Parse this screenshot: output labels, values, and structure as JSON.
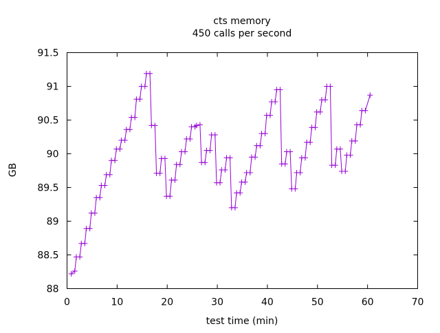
{
  "chart_data": {
    "type": "line",
    "title": "cts memory",
    "subtitle": "450 calls per second",
    "xlabel": "test time (min)",
    "ylabel": "GB",
    "xlim": [
      0,
      70
    ],
    "ylim": [
      88,
      91.5
    ],
    "xticks": [
      0,
      10,
      20,
      30,
      40,
      50,
      60,
      70
    ],
    "yticks": [
      88,
      88.5,
      89,
      89.5,
      90,
      90.5,
      91,
      91.5
    ],
    "ytick_labels": [
      "88",
      "88.5",
      "89",
      "89.5",
      "90",
      "90.5",
      "91",
      "91.5"
    ],
    "grid": false,
    "legend": "none",
    "series": [
      {
        "name": "cts memory",
        "color": "#9400d3",
        "marker": "plus",
        "points": [
          [
            0.85,
            88.22
          ],
          [
            1.55,
            88.26
          ],
          [
            1.85,
            88.47
          ],
          [
            2.55,
            88.47
          ],
          [
            2.85,
            88.67
          ],
          [
            3.55,
            88.67
          ],
          [
            3.85,
            88.89
          ],
          [
            4.55,
            88.89
          ],
          [
            4.85,
            89.12
          ],
          [
            5.55,
            89.12
          ],
          [
            5.85,
            89.35
          ],
          [
            6.55,
            89.35
          ],
          [
            6.85,
            89.53
          ],
          [
            7.55,
            89.53
          ],
          [
            7.85,
            89.69
          ],
          [
            8.55,
            89.69
          ],
          [
            8.85,
            89.9
          ],
          [
            9.55,
            89.9
          ],
          [
            9.85,
            90.07
          ],
          [
            10.55,
            90.07
          ],
          [
            10.85,
            90.2
          ],
          [
            11.55,
            90.2
          ],
          [
            11.85,
            90.36
          ],
          [
            12.55,
            90.36
          ],
          [
            12.85,
            90.54
          ],
          [
            13.55,
            90.54
          ],
          [
            13.85,
            90.81
          ],
          [
            14.55,
            90.81
          ],
          [
            14.85,
            91.0
          ],
          [
            15.55,
            91.0
          ],
          [
            15.85,
            91.19
          ],
          [
            16.55,
            91.19
          ],
          [
            16.85,
            90.42
          ],
          [
            17.55,
            90.42
          ],
          [
            17.85,
            89.71
          ],
          [
            18.55,
            89.71
          ],
          [
            18.85,
            89.93
          ],
          [
            19.55,
            89.93
          ],
          [
            19.85,
            89.37
          ],
          [
            20.55,
            89.37
          ],
          [
            20.85,
            89.61
          ],
          [
            21.55,
            89.61
          ],
          [
            21.85,
            89.84
          ],
          [
            22.55,
            89.84
          ],
          [
            22.85,
            90.03
          ],
          [
            23.55,
            90.03
          ],
          [
            23.85,
            90.22
          ],
          [
            24.55,
            90.22
          ],
          [
            24.85,
            90.4
          ],
          [
            25.55,
            90.4
          ],
          [
            25.85,
            90.42
          ],
          [
            26.55,
            90.43
          ],
          [
            26.85,
            89.87
          ],
          [
            27.55,
            89.87
          ],
          [
            27.85,
            90.05
          ],
          [
            28.55,
            90.05
          ],
          [
            28.85,
            90.28
          ],
          [
            29.55,
            90.28
          ],
          [
            29.85,
            89.57
          ],
          [
            30.55,
            89.57
          ],
          [
            30.85,
            89.76
          ],
          [
            31.55,
            89.76
          ],
          [
            31.85,
            89.94
          ],
          [
            32.55,
            89.94
          ],
          [
            32.85,
            89.2
          ],
          [
            33.55,
            89.2
          ],
          [
            33.85,
            89.42
          ],
          [
            34.55,
            89.42
          ],
          [
            34.85,
            89.58
          ],
          [
            35.55,
            89.58
          ],
          [
            35.85,
            89.72
          ],
          [
            36.55,
            89.72
          ],
          [
            36.85,
            89.95
          ],
          [
            37.55,
            89.95
          ],
          [
            37.85,
            90.12
          ],
          [
            38.55,
            90.12
          ],
          [
            38.85,
            90.3
          ],
          [
            39.55,
            90.3
          ],
          [
            39.85,
            90.57
          ],
          [
            40.55,
            90.57
          ],
          [
            40.85,
            90.77
          ],
          [
            41.55,
            90.77
          ],
          [
            41.85,
            90.95
          ],
          [
            42.55,
            90.95
          ],
          [
            42.85,
            89.85
          ],
          [
            43.55,
            89.85
          ],
          [
            43.85,
            90.03
          ],
          [
            44.55,
            90.03
          ],
          [
            44.85,
            89.48
          ],
          [
            45.55,
            89.48
          ],
          [
            45.85,
            89.72
          ],
          [
            46.55,
            89.72
          ],
          [
            46.85,
            89.94
          ],
          [
            47.55,
            89.94
          ],
          [
            47.85,
            90.17
          ],
          [
            48.55,
            90.17
          ],
          [
            48.85,
            90.39
          ],
          [
            49.55,
            90.39
          ],
          [
            49.85,
            90.62
          ],
          [
            50.55,
            90.62
          ],
          [
            50.85,
            90.8
          ],
          [
            51.55,
            90.8
          ],
          [
            51.85,
            91.0
          ],
          [
            52.55,
            91.0
          ],
          [
            52.85,
            89.83
          ],
          [
            53.55,
            89.83
          ],
          [
            53.85,
            90.07
          ],
          [
            54.55,
            90.07
          ],
          [
            54.85,
            89.74
          ],
          [
            55.55,
            89.74
          ],
          [
            55.85,
            89.98
          ],
          [
            56.55,
            89.98
          ],
          [
            56.85,
            90.19
          ],
          [
            57.55,
            90.19
          ],
          [
            57.85,
            90.43
          ],
          [
            58.55,
            90.43
          ],
          [
            58.85,
            90.64
          ],
          [
            59.55,
            90.64
          ],
          [
            60.5,
            90.87
          ]
        ]
      }
    ]
  }
}
